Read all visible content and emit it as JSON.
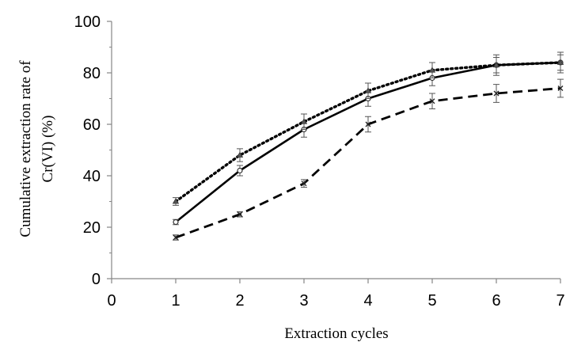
{
  "chart_data": {
    "type": "line",
    "title": "",
    "xlabel": "Extraction cycles",
    "ylabel_line1": "Cumulative extraction rate of",
    "ylabel_line2": "Cr(VI) (%)",
    "xlim": [
      0,
      7
    ],
    "ylim": [
      0,
      100
    ],
    "x_ticks": [
      0,
      1,
      2,
      3,
      4,
      5,
      6,
      7
    ],
    "y_ticks": [
      0,
      20,
      40,
      60,
      80,
      100
    ],
    "grid": false,
    "legend": "none",
    "series": [
      {
        "line_style": "solid",
        "marker": "circle",
        "x": [
          1,
          2,
          3,
          4,
          5,
          6,
          7
        ],
        "y": [
          22,
          42,
          58,
          70,
          78,
          83,
          84
        ],
        "error": [
          1,
          2,
          3,
          3,
          3,
          4,
          4
        ]
      },
      {
        "line_style": "dotted",
        "marker": "triangle",
        "x": [
          1,
          2,
          3,
          4,
          5,
          6,
          7
        ],
        "y": [
          30,
          48,
          61,
          73,
          81,
          83,
          84
        ],
        "error": [
          1.5,
          2.5,
          3,
          3,
          3,
          3,
          3
        ]
      },
      {
        "line_style": "dashed",
        "marker": "x",
        "x": [
          1,
          2,
          3,
          4,
          5,
          6,
          7
        ],
        "y": [
          16,
          25,
          37,
          60,
          69,
          72,
          74
        ],
        "error": [
          1,
          1,
          1.5,
          3,
          3,
          3.5,
          3.5
        ]
      }
    ]
  }
}
